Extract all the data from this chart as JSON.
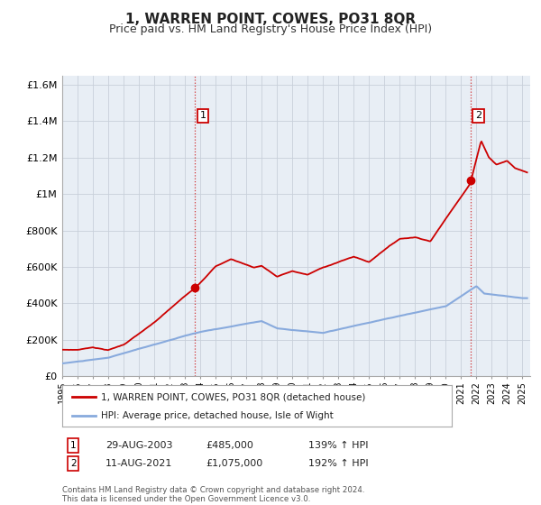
{
  "title": "1, WARREN POINT, COWES, PO31 8QR",
  "subtitle": "Price paid vs. HM Land Registry's House Price Index (HPI)",
  "ylim": [
    0,
    1650000
  ],
  "yticks": [
    0,
    200000,
    400000,
    600000,
    800000,
    1000000,
    1200000,
    1400000,
    1600000
  ],
  "ytick_labels": [
    "£0",
    "£200K",
    "£400K",
    "£600K",
    "£800K",
    "£1M",
    "£1.2M",
    "£1.4M",
    "£1.6M"
  ],
  "xmin": 1995.0,
  "xmax": 2025.5,
  "sale1_x": 2003.66,
  "sale1_y": 485000,
  "sale2_x": 2021.61,
  "sale2_y": 1075000,
  "sale1_label": "1",
  "sale2_label": "2",
  "sale1_date": "29-AUG-2003",
  "sale1_price": "£485,000",
  "sale1_hpi": "139% ↑ HPI",
  "sale2_date": "11-AUG-2021",
  "sale2_price": "£1,075,000",
  "sale2_hpi": "192% ↑ HPI",
  "legend_line1": "1, WARREN POINT, COWES, PO31 8QR (detached house)",
  "legend_line2": "HPI: Average price, detached house, Isle of Wight",
  "footer": "Contains HM Land Registry data © Crown copyright and database right 2024.\nThis data is licensed under the Open Government Licence v3.0.",
  "line_color": "#cc0000",
  "hpi_color": "#88aadd",
  "bg_color": "#e8eef5",
  "grid_color": "#c8d0da",
  "title_fontsize": 11,
  "subtitle_fontsize": 9
}
